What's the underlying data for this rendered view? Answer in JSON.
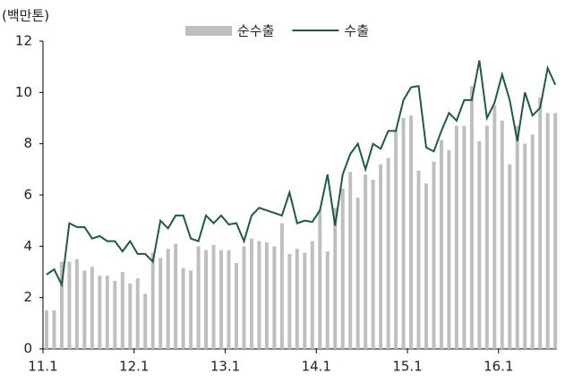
{
  "chart_data": {
    "type": "bar_line",
    "y_label": "(백만톤)",
    "categories": [
      "11.1",
      null,
      null,
      null,
      null,
      null,
      null,
      null,
      null,
      null,
      null,
      null,
      "12.1",
      null,
      null,
      null,
      null,
      null,
      null,
      null,
      null,
      null,
      null,
      null,
      "13.1",
      null,
      null,
      null,
      null,
      null,
      null,
      null,
      null,
      null,
      null,
      null,
      "14.1",
      null,
      null,
      null,
      null,
      null,
      null,
      null,
      null,
      null,
      null,
      null,
      "15.1",
      null,
      null,
      null,
      null,
      null,
      null,
      null,
      null,
      null,
      null,
      null,
      "16.1",
      null,
      null,
      null,
      null,
      null,
      null,
      null
    ],
    "series": [
      {
        "name": "순수출",
        "type": "bar",
        "color": "#bfbfbf",
        "values": [
          1.5,
          1.5,
          3.4,
          3.4,
          3.5,
          3.05,
          3.2,
          2.85,
          2.85,
          2.65,
          3.0,
          2.55,
          2.75,
          2.15,
          3.75,
          3.55,
          3.9,
          4.1,
          3.15,
          3.05,
          4.0,
          3.85,
          4.05,
          3.85,
          3.85,
          3.35,
          4.0,
          4.3,
          4.2,
          4.15,
          4.0,
          4.9,
          3.7,
          3.9,
          3.75,
          4.2,
          5.4,
          3.8,
          5.5,
          6.25,
          6.9,
          5.9,
          6.8,
          6.6,
          7.2,
          7.45,
          8.55,
          9.0,
          9.1,
          6.95,
          6.45,
          7.3,
          8.15,
          7.75,
          8.7,
          8.7,
          10.25,
          8.1,
          8.7,
          9.5,
          8.9,
          7.2,
          8.7,
          8.0,
          8.35,
          9.8,
          9.2,
          9.2
        ]
      },
      {
        "name": "수출",
        "type": "line",
        "color": "#1e5c3a",
        "values": [
          2.9,
          3.1,
          2.5,
          4.9,
          4.75,
          4.75,
          4.3,
          4.4,
          4.2,
          4.2,
          3.8,
          4.2,
          3.7,
          3.7,
          3.4,
          5.0,
          4.7,
          5.2,
          5.2,
          4.3,
          4.2,
          5.2,
          4.9,
          5.2,
          4.85,
          4.9,
          4.2,
          5.2,
          5.5,
          5.4,
          5.3,
          5.2,
          6.1,
          4.9,
          5.0,
          4.95,
          5.4,
          6.8,
          4.8,
          6.8,
          7.6,
          8.0,
          7.0,
          8.0,
          7.8,
          8.5,
          8.5,
          9.7,
          10.2,
          10.25,
          7.85,
          7.7,
          8.5,
          9.2,
          8.9,
          9.7,
          9.7,
          11.25,
          9.0,
          9.6,
          10.7,
          9.7,
          8.1,
          10.0,
          9.1,
          9.4,
          10.95,
          10.3
        ]
      }
    ],
    "ylim": [
      0,
      12
    ],
    "yticks": [
      0,
      2,
      4,
      6,
      8,
      10,
      12
    ],
    "legend": "top"
  }
}
